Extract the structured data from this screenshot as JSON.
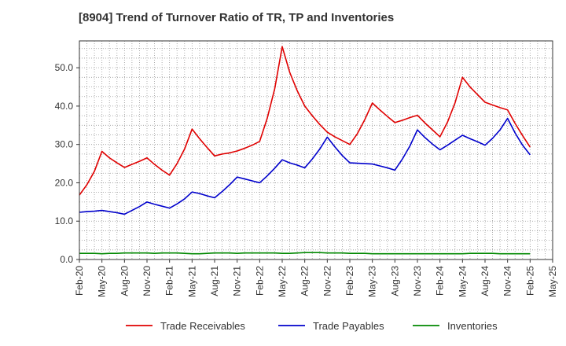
{
  "chart_data": {
    "type": "line",
    "title": "[8904]  Trend of Turnover Ratio of TR, TP and Inventories",
    "xlabel": "",
    "ylabel": "",
    "ylim": [
      0,
      57
    ],
    "yticks": [
      "0.0",
      "10.0",
      "20.0",
      "30.0",
      "40.0",
      "50.0"
    ],
    "x_tick_labels": [
      "Feb-20",
      "May-20",
      "Aug-20",
      "Nov-20",
      "Feb-21",
      "May-21",
      "Aug-21",
      "Nov-21",
      "Feb-22",
      "May-22",
      "Aug-22",
      "Nov-22",
      "Feb-23",
      "May-23",
      "Aug-23",
      "Nov-23",
      "Feb-24",
      "May-24",
      "Aug-24",
      "Nov-24",
      "Feb-25",
      "May-25"
    ],
    "grid": true,
    "legend_position": "bottom",
    "series": [
      {
        "name": "Trade Receivables",
        "color": "#e00000",
        "values": [
          16.8,
          19.5,
          23.0,
          28.2,
          26.5,
          25.2,
          24.0,
          24.8,
          25.6,
          26.5,
          24.8,
          23.3,
          22.0,
          25.0,
          28.8,
          34.0,
          31.5,
          29.2,
          27.0,
          27.5,
          27.8,
          28.3,
          29.0,
          29.8,
          30.8,
          36.8,
          44.5,
          55.5,
          48.8,
          44.0,
          40.0,
          37.5,
          35.2,
          33.2,
          32.0,
          31.0,
          30.0,
          32.8,
          36.5,
          40.8,
          39.0,
          37.3,
          35.7,
          36.3,
          37.0,
          37.6,
          35.6,
          33.8,
          32.0,
          35.8,
          40.8,
          47.5,
          45.0,
          43.0,
          41.0,
          40.3,
          39.6,
          39.0,
          35.5,
          32.3,
          29.3
        ]
      },
      {
        "name": "Trade Payables",
        "color": "#0000cc",
        "values": [
          12.3,
          12.5,
          12.6,
          12.8,
          12.5,
          12.2,
          11.8,
          12.8,
          13.8,
          15.0,
          14.4,
          13.9,
          13.4,
          14.5,
          15.8,
          17.6,
          17.2,
          16.6,
          16.1,
          17.7,
          19.5,
          21.5,
          21.0,
          20.5,
          20.0,
          21.8,
          23.8,
          26.0,
          25.2,
          24.6,
          23.9,
          26.2,
          28.8,
          31.9,
          29.4,
          27.1,
          25.2,
          25.1,
          25.0,
          24.9,
          24.4,
          23.9,
          23.3,
          26.2,
          29.6,
          33.8,
          31.8,
          30.1,
          28.6,
          29.8,
          31.1,
          32.4,
          31.5,
          30.7,
          29.8,
          31.6,
          33.8,
          36.8,
          33.0,
          29.8,
          27.3
        ]
      },
      {
        "name": "Inventories",
        "color": "#008800",
        "values": [
          1.6,
          1.6,
          1.6,
          1.5,
          1.6,
          1.6,
          1.7,
          1.7,
          1.7,
          1.7,
          1.6,
          1.7,
          1.7,
          1.7,
          1.6,
          1.5,
          1.5,
          1.6,
          1.7,
          1.7,
          1.7,
          1.6,
          1.7,
          1.7,
          1.7,
          1.7,
          1.7,
          1.6,
          1.6,
          1.7,
          1.8,
          1.8,
          1.8,
          1.7,
          1.7,
          1.7,
          1.6,
          1.6,
          1.6,
          1.5,
          1.5,
          1.5,
          1.5,
          1.5,
          1.5,
          1.5,
          1.5,
          1.5,
          1.5,
          1.5,
          1.5,
          1.5,
          1.6,
          1.6,
          1.6,
          1.6,
          1.5,
          1.5,
          1.5,
          1.5,
          1.5
        ]
      }
    ]
  }
}
